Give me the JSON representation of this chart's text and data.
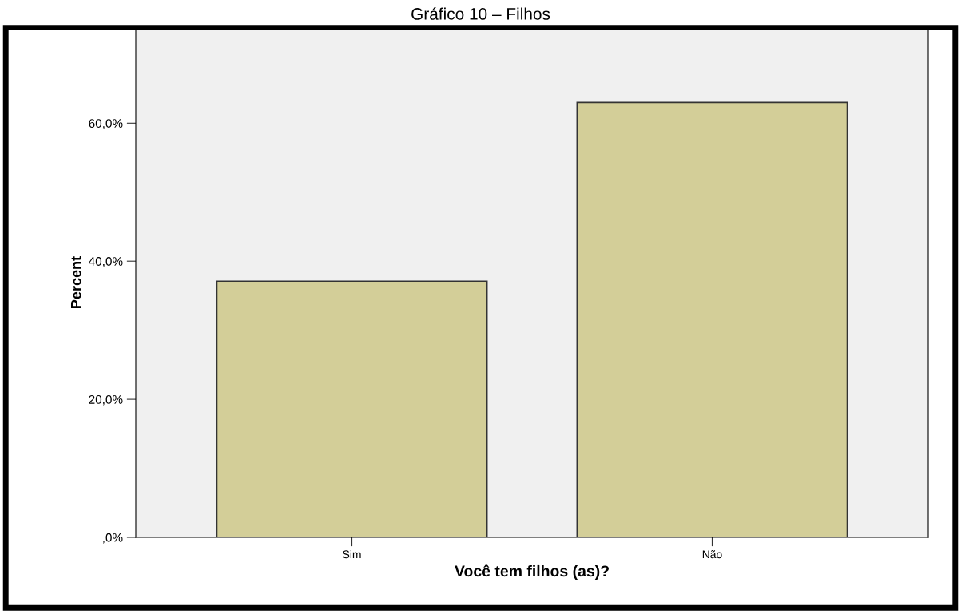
{
  "chart_data": {
    "type": "bar",
    "title": "Gráfico 10 – Filhos",
    "xlabel": "Você tem filhos (as)?",
    "ylabel": "Percent",
    "categories": [
      "Sim",
      "Não"
    ],
    "values": [
      37.1,
      63.0
    ],
    "color": "#d3ce98",
    "ylim": [
      0,
      73.8
    ],
    "yticks": [
      {
        "value": 0,
        "label": ",0%"
      },
      {
        "value": 20,
        "label": "20,0%"
      },
      {
        "value": 40,
        "label": "40,0%"
      },
      {
        "value": 60,
        "label": "60,0%"
      }
    ],
    "grid": false
  }
}
